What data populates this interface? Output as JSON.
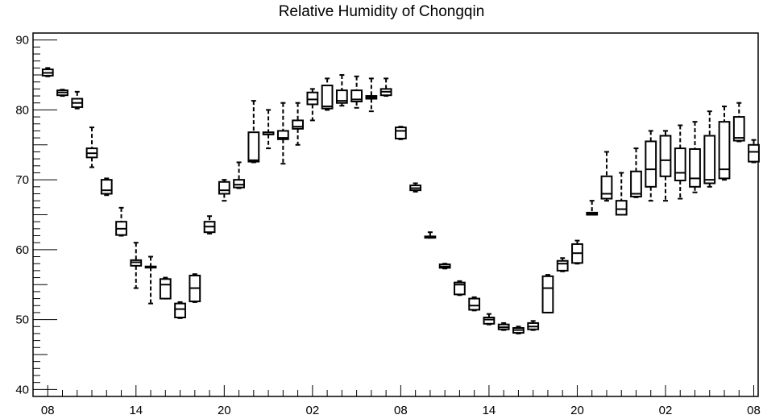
{
  "chart_data": {
    "type": "box",
    "title": "Relative Humidity of Chongqin",
    "xlabel": "",
    "ylabel": "",
    "ylim": [
      39,
      91
    ],
    "y_ticks": [
      40,
      50,
      60,
      70,
      80,
      90
    ],
    "x_ticks": [
      {
        "label": "08",
        "x": 0
      },
      {
        "label": "14",
        "x": 6
      },
      {
        "label": "20",
        "x": 12
      },
      {
        "label": "02",
        "x": 18
      },
      {
        "label": "08",
        "x": 24
      },
      {
        "label": "14",
        "x": 30
      },
      {
        "label": "20",
        "x": 36
      },
      {
        "label": "02",
        "x": 42
      },
      {
        "label": "08",
        "x": 48
      }
    ],
    "xlim": [
      -1,
      48.3
    ],
    "grid": false,
    "legend": "none",
    "boxes": [
      {
        "x": 0,
        "whisker_low": 84.8,
        "q1": 84.9,
        "median": 85.3,
        "q3": 85.8,
        "whisker_high": 86.0
      },
      {
        "x": 1,
        "whisker_low": 82.0,
        "q1": 82.1,
        "median": 82.5,
        "q3": 82.8,
        "whisker_high": 82.9
      },
      {
        "x": 2,
        "whisker_low": 80.2,
        "q1": 80.4,
        "median": 81.0,
        "q3": 81.6,
        "whisker_high": 82.6
      },
      {
        "x": 3,
        "whisker_low": 71.8,
        "q1": 73.2,
        "median": 73.8,
        "q3": 74.5,
        "whisker_high": 77.5
      },
      {
        "x": 4,
        "whisker_low": 67.8,
        "q1": 68.0,
        "median": 68.5,
        "q3": 70.0,
        "whisker_high": 70.2
      },
      {
        "x": 5,
        "whisker_low": 62.0,
        "q1": 62.1,
        "median": 63.0,
        "q3": 64.0,
        "whisker_high": 66.0
      },
      {
        "x": 6,
        "whisker_low": 54.5,
        "q1": 57.7,
        "median": 58.2,
        "q3": 58.5,
        "whisker_high": 61.0
      },
      {
        "x": 7,
        "whisker_low": 52.3,
        "q1": 57.5,
        "median": 57.5,
        "q3": 57.6,
        "whisker_high": 59.0
      },
      {
        "x": 8,
        "whisker_low": 53.0,
        "q1": 53.0,
        "median": 55.0,
        "q3": 55.8,
        "whisker_high": 56.0
      },
      {
        "x": 9,
        "whisker_low": 50.2,
        "q1": 50.3,
        "median": 51.5,
        "q3": 52.3,
        "whisker_high": 52.5
      },
      {
        "x": 10,
        "whisker_low": 52.5,
        "q1": 52.6,
        "median": 54.5,
        "q3": 56.3,
        "whisker_high": 56.5
      },
      {
        "x": 11,
        "whisker_low": 62.3,
        "q1": 62.5,
        "median": 63.3,
        "q3": 64.0,
        "whisker_high": 64.8
      },
      {
        "x": 12,
        "whisker_low": 67.0,
        "q1": 68.0,
        "median": 68.5,
        "q3": 69.7,
        "whisker_high": 70.0
      },
      {
        "x": 13,
        "whisker_low": 68.8,
        "q1": 68.9,
        "median": 69.3,
        "q3": 70.0,
        "whisker_high": 72.5
      },
      {
        "x": 14,
        "whisker_low": 72.5,
        "q1": 72.6,
        "median": 72.8,
        "q3": 76.8,
        "whisker_high": 81.3
      },
      {
        "x": 15,
        "whisker_low": 74.5,
        "q1": 76.5,
        "median": 76.5,
        "q3": 76.8,
        "whisker_high": 80.0
      },
      {
        "x": 16,
        "whisker_low": 72.3,
        "q1": 75.8,
        "median": 76.0,
        "q3": 77.0,
        "whisker_high": 81.0
      },
      {
        "x": 17,
        "whisker_low": 75.0,
        "q1": 77.3,
        "median": 77.6,
        "q3": 78.5,
        "whisker_high": 81.0
      },
      {
        "x": 18,
        "whisker_low": 78.5,
        "q1": 80.8,
        "median": 81.5,
        "q3": 82.5,
        "whisker_high": 83.0
      },
      {
        "x": 19,
        "whisker_low": 80.0,
        "q1": 80.2,
        "median": 80.5,
        "q3": 83.5,
        "whisker_high": 84.5
      },
      {
        "x": 20,
        "whisker_low": 80.6,
        "q1": 81.0,
        "median": 81.3,
        "q3": 82.8,
        "whisker_high": 85.0
      },
      {
        "x": 21,
        "whisker_low": 80.3,
        "q1": 81.2,
        "median": 81.5,
        "q3": 82.8,
        "whisker_high": 84.8
      },
      {
        "x": 22,
        "whisker_low": 79.8,
        "q1": 81.6,
        "median": 81.8,
        "q3": 82.0,
        "whisker_high": 84.5
      },
      {
        "x": 23,
        "whisker_low": 82.0,
        "q1": 82.1,
        "median": 82.6,
        "q3": 83.0,
        "whisker_high": 84.5
      },
      {
        "x": 24,
        "whisker_low": 75.8,
        "q1": 75.9,
        "median": 77.0,
        "q3": 77.5,
        "whisker_high": 77.6
      },
      {
        "x": 25,
        "whisker_low": 68.3,
        "q1": 68.5,
        "median": 68.8,
        "q3": 69.2,
        "whisker_high": 69.5
      },
      {
        "x": 26,
        "whisker_low": 61.7,
        "q1": 61.7,
        "median": 61.8,
        "q3": 61.9,
        "whisker_high": 62.5
      },
      {
        "x": 27,
        "whisker_low": 57.3,
        "q1": 57.4,
        "median": 57.6,
        "q3": 57.9,
        "whisker_high": 58.0
      },
      {
        "x": 28,
        "whisker_low": 53.5,
        "q1": 53.6,
        "median": 55.0,
        "q3": 55.3,
        "whisker_high": 55.5
      },
      {
        "x": 29,
        "whisker_low": 51.3,
        "q1": 51.4,
        "median": 52.0,
        "q3": 53.0,
        "whisker_high": 53.2
      },
      {
        "x": 30,
        "whisker_low": 49.3,
        "q1": 49.4,
        "median": 50.0,
        "q3": 50.3,
        "whisker_high": 50.8
      },
      {
        "x": 31,
        "whisker_low": 48.5,
        "q1": 48.6,
        "median": 48.9,
        "q3": 49.3,
        "whisker_high": 49.5
      },
      {
        "x": 32,
        "whisker_low": 48.0,
        "q1": 48.1,
        "median": 48.5,
        "q3": 48.8,
        "whisker_high": 49.0
      },
      {
        "x": 33,
        "whisker_low": 48.5,
        "q1": 48.6,
        "median": 49.0,
        "q3": 49.5,
        "whisker_high": 49.8
      },
      {
        "x": 34,
        "whisker_low": 51.0,
        "q1": 51.0,
        "median": 54.5,
        "q3": 56.2,
        "whisker_high": 56.4
      },
      {
        "x": 35,
        "whisker_low": 56.9,
        "q1": 57.0,
        "median": 58.0,
        "q3": 58.4,
        "whisker_high": 58.8
      },
      {
        "x": 36,
        "whisker_low": 58.0,
        "q1": 58.1,
        "median": 59.5,
        "q3": 60.8,
        "whisker_high": 61.3
      },
      {
        "x": 37,
        "whisker_low": 65.0,
        "q1": 65.0,
        "median": 65.1,
        "q3": 65.3,
        "whisker_high": 67.0
      },
      {
        "x": 38,
        "whisker_low": 67.0,
        "q1": 67.3,
        "median": 68.0,
        "q3": 70.5,
        "whisker_high": 74.0
      },
      {
        "x": 39,
        "whisker_low": 65.0,
        "q1": 65.0,
        "median": 65.8,
        "q3": 67.0,
        "whisker_high": 71.0
      },
      {
        "x": 40,
        "whisker_low": 67.5,
        "q1": 67.6,
        "median": 68.0,
        "q3": 71.2,
        "whisker_high": 74.5
      },
      {
        "x": 41,
        "whisker_low": 67.0,
        "q1": 69.0,
        "median": 71.5,
        "q3": 75.5,
        "whisker_high": 77.0
      },
      {
        "x": 42,
        "whisker_low": 67.0,
        "q1": 70.5,
        "median": 72.8,
        "q3": 76.3,
        "whisker_high": 77.0
      },
      {
        "x": 43,
        "whisker_low": 67.3,
        "q1": 69.9,
        "median": 71.0,
        "q3": 74.5,
        "whisker_high": 77.8
      },
      {
        "x": 44,
        "whisker_low": 68.2,
        "q1": 69.0,
        "median": 70.2,
        "q3": 74.4,
        "whisker_high": 78.3
      },
      {
        "x": 45,
        "whisker_low": 69.0,
        "q1": 69.5,
        "median": 70.0,
        "q3": 76.3,
        "whisker_high": 79.8
      },
      {
        "x": 46,
        "whisker_low": 70.0,
        "q1": 70.2,
        "median": 71.5,
        "q3": 78.3,
        "whisker_high": 80.5
      },
      {
        "x": 47,
        "whisker_low": 75.5,
        "q1": 75.6,
        "median": 76.0,
        "q3": 79.0,
        "whisker_high": 81.0
      },
      {
        "x": 48,
        "whisker_low": 72.5,
        "q1": 72.6,
        "median": 74.0,
        "q3": 75.0,
        "whisker_high": 75.7
      }
    ]
  }
}
